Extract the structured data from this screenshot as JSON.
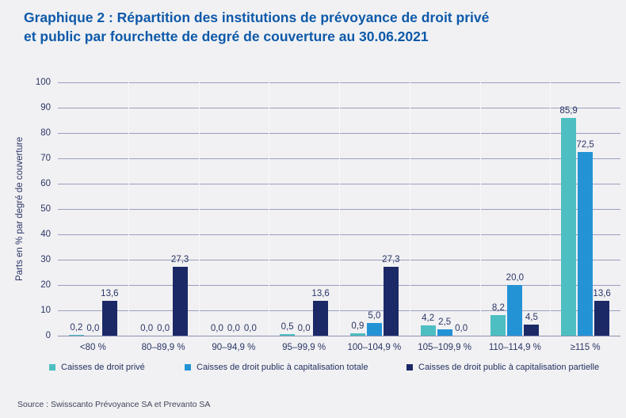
{
  "header": {
    "title_lines": [
      "Graphique 2 : Répartition des institutions de prévoyance de droit privé",
      "et public par fourchette de degré de couverture au 30.06.2021"
    ]
  },
  "chart_data": {
    "type": "bar",
    "title": "Graphique 2 : Répartition des institutions de prévoyance de droit privé et public par fourchette de degré de couverture au 30.06.2021",
    "xlabel": "",
    "ylabel": "Parts en % par degré de couverture",
    "ylim": [
      0,
      100
    ],
    "ytick_step": 10,
    "yticks": [
      "0",
      "10",
      "20",
      "30",
      "40",
      "50",
      "60",
      "70",
      "80",
      "90",
      "100"
    ],
    "grid": true,
    "legend_position": "bottom",
    "categories": [
      "<80 %",
      "80–89,9 %",
      "90–94,9 %",
      "95–99,9 %",
      "100–104,9 %",
      "105–109,9 %",
      "110–114,9 %",
      "≥115 %"
    ],
    "series": [
      {
        "name": "Caisses de droit privé",
        "color": "#4dbfc2",
        "values": [
          0.2,
          0.0,
          0.0,
          0.5,
          0.9,
          4.2,
          8.2,
          85.9
        ],
        "labels": [
          "0,2",
          "0,0",
          "0,0",
          "0,5",
          "0,9",
          "4,2",
          "8,2",
          "85,9"
        ]
      },
      {
        "name": "Caisses de droit public à capitalisation totale",
        "color": "#2493d6",
        "values": [
          0.0,
          0.0,
          0.0,
          0.0,
          5.0,
          2.5,
          20.0,
          72.5
        ],
        "labels": [
          "0,0",
          "0,0",
          "0,0",
          "0,0",
          "5,0",
          "2,5",
          "20,0",
          "72,5"
        ]
      },
      {
        "name": "Caisses de droit public à capitalisation partielle",
        "color": "#1c2967",
        "values": [
          13.6,
          27.3,
          0.0,
          13.6,
          27.3,
          0.0,
          4.5,
          13.6
        ],
        "labels": [
          "13,6",
          "27,3",
          "0,0",
          "13,6",
          "27,3",
          "0,0",
          "4,5",
          "13,6"
        ]
      }
    ]
  },
  "footer": {
    "source": "Source : Swisscanto Prévoyance SA et Prevanto SA"
  },
  "colors": {
    "title": "#0d59a9",
    "background": "#f1f1f3",
    "gridline": "#9a9ebe",
    "axis_text": "#2b3566"
  }
}
